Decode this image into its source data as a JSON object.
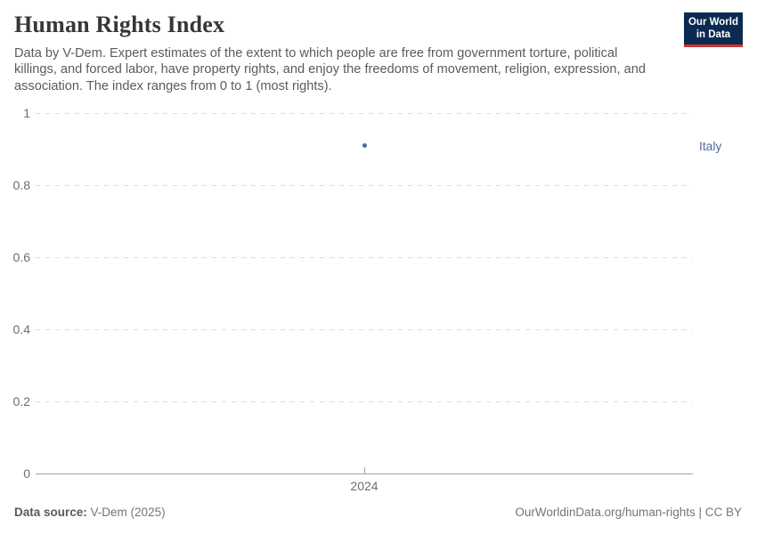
{
  "header": {
    "title": "Human Rights Index",
    "subtitle": "Data by V-Dem. Expert estimates of the extent to which people are free from government torture, political killings, and forced labor, have property rights, and enjoy the freedoms of movement, religion, expression, and association. The index ranges from 0 to 1 (most rights).",
    "logo": {
      "line1": "Our World",
      "line2": "in Data"
    }
  },
  "chart_data": {
    "type": "scatter",
    "title": "Human Rights Index",
    "x": [
      2024
    ],
    "xtick_labels": [
      "2024"
    ],
    "series": [
      {
        "name": "Italy",
        "values": [
          0.91
        ],
        "color": "#4c6a9c"
      }
    ],
    "xlabel": "",
    "ylabel": "",
    "ylim": [
      0,
      1
    ],
    "yticks": [
      0,
      0.2,
      0.4,
      0.6,
      0.8,
      1
    ],
    "ytick_labels": [
      "0",
      "0.2",
      "0.4",
      "0.6",
      "0.8",
      "1"
    ],
    "grid": "horizontal-dashed",
    "legend_position": "right-entity-label"
  },
  "footer": {
    "source_label": "Data source:",
    "source_value": "V-Dem (2025)",
    "attribution": "OurWorldinData.org/human-rights | CC BY"
  },
  "colors": {
    "accent_blue": "#4c6a9c",
    "grid": "#dcdcdc",
    "axis": "#a3a3a3",
    "logo_navy": "#0b2a51",
    "logo_red": "#d0342c"
  }
}
